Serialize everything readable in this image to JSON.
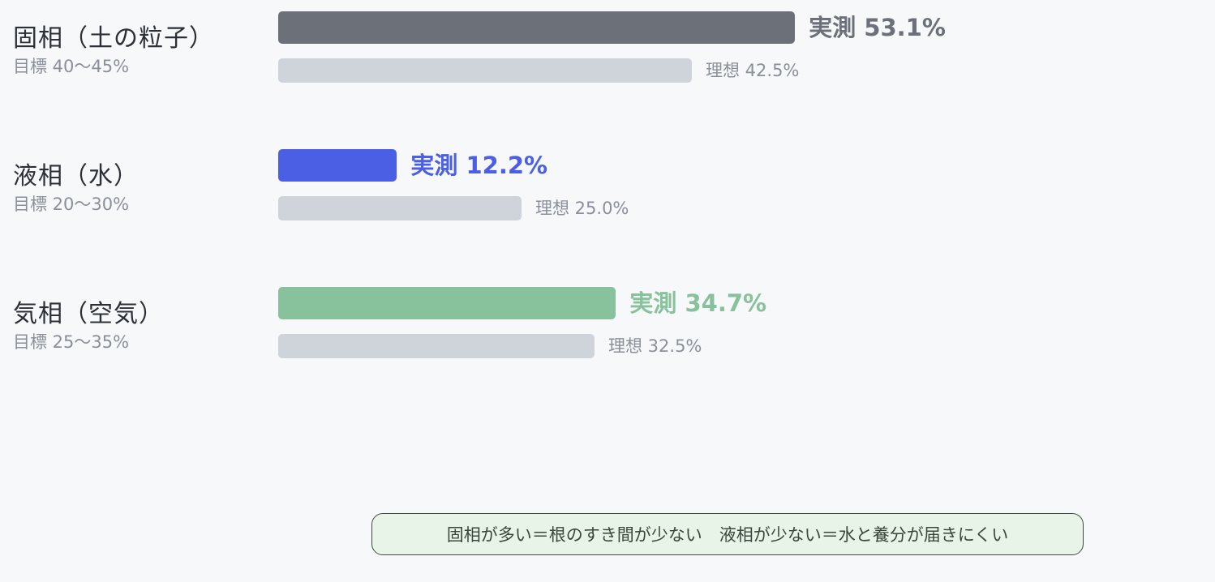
{
  "chart_data": {
    "type": "bar",
    "orientation": "horizontal",
    "xlim": [
      0,
      100
    ],
    "categories": [
      "固相（土の粒子）",
      "液相（水）",
      "気相（空気）"
    ],
    "targets": [
      "目標 40〜45%",
      "目標 20〜30%",
      "目標 25〜35%"
    ],
    "series": [
      {
        "name": "実測",
        "values": [
          53.1,
          12.2,
          34.7
        ],
        "colors": [
          "#6b7079",
          "#4a5fe4",
          "#88c29d"
        ]
      },
      {
        "name": "理想",
        "values": [
          42.5,
          25.0,
          32.5
        ],
        "colors": [
          "#cfd3da",
          "#cfd3da",
          "#cfd3da"
        ]
      }
    ],
    "actual_labels": [
      "実測 53.1%",
      "実測 12.2%",
      "実測 34.7%"
    ],
    "ideal_labels": [
      "理想 42.5%",
      "理想 25.0%",
      "理想 32.5%"
    ],
    "legend": "none",
    "grid": false
  },
  "note": "固相が多い＝根のすき間が少ない　液相が少ない＝水と養分が届きにくい"
}
